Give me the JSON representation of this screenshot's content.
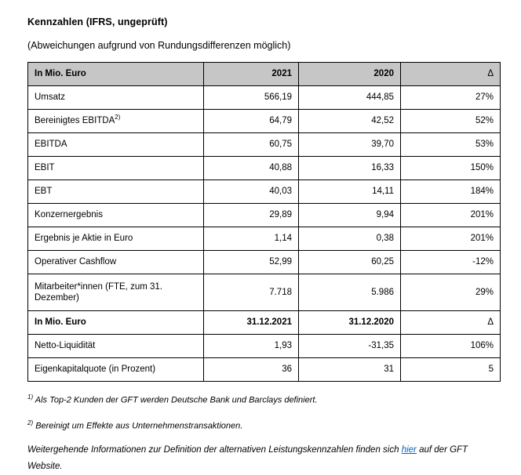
{
  "page": {
    "title": "Kennzahlen (IFRS, ungeprüft)",
    "subtitle": "(Abweichungen aufgrund von Rundungsdifferenzen möglich)"
  },
  "table": {
    "header": {
      "label": "In Mio. Euro",
      "y2021": "2021",
      "y2020": "2020",
      "delta": "Δ"
    },
    "rows": [
      {
        "label": "Umsatz",
        "v2021": "566,19",
        "v2020": "444,85",
        "delta": "27%"
      },
      {
        "label": "Bereinigtes EBITDA",
        "label_sup": "2)",
        "v2021": "64,79",
        "v2020": "42,52",
        "delta": "52%"
      },
      {
        "label": "EBITDA",
        "v2021": "60,75",
        "v2020": "39,70",
        "delta": "53%"
      },
      {
        "label": "EBIT",
        "v2021": "40,88",
        "v2020": "16,33",
        "delta": "150%"
      },
      {
        "label": "EBT",
        "v2021": "40,03",
        "v2020": "14,11",
        "delta": "184%"
      },
      {
        "label": "Konzernergebnis",
        "v2021": "29,89",
        "v2020": "9,94",
        "delta": "201%"
      },
      {
        "label": "Ergebnis je Aktie in Euro",
        "v2021": "1,14",
        "v2020": "0,38",
        "delta": "201%"
      },
      {
        "label": "Operativer Cashflow",
        "v2021": "52,99",
        "v2020": "60,25",
        "delta": "-12%"
      },
      {
        "label": "Mitarbeiter*innen (FTE, zum 31. Dezember)",
        "v2021": "7.718",
        "v2020": "5.986",
        "delta": "29%"
      }
    ],
    "header2": {
      "label": "In Mio. Euro",
      "y2021": "31.12.2021",
      "y2020": "31.12.2020",
      "delta": "Δ"
    },
    "rows2": [
      {
        "label": "Netto-Liquidität",
        "v2021": "1,93",
        "v2020": "-31,35",
        "delta": "106%"
      },
      {
        "label": "Eigenkapitalquote (in Prozent)",
        "v2021": "36",
        "v2020": "31",
        "delta": "5"
      }
    ]
  },
  "footnotes": {
    "fn1_sup": "1)",
    "fn1_text": "Als Top-2 Kunden der GFT werden Deutsche Bank und Barclays definiert.",
    "fn2_sup": "2)",
    "fn2_text": "Bereinigt um Effekte aus Unternehmenstransaktionen.",
    "info_before": "Weitergehende Informationen zur Definition der alternativen Leistungskennzahlen finden sich",
    "info_link": "hier",
    "info_after": "auf der GFT Website.",
    "link_color": "#0563c1",
    "header_bg": "#c6c6c6"
  }
}
